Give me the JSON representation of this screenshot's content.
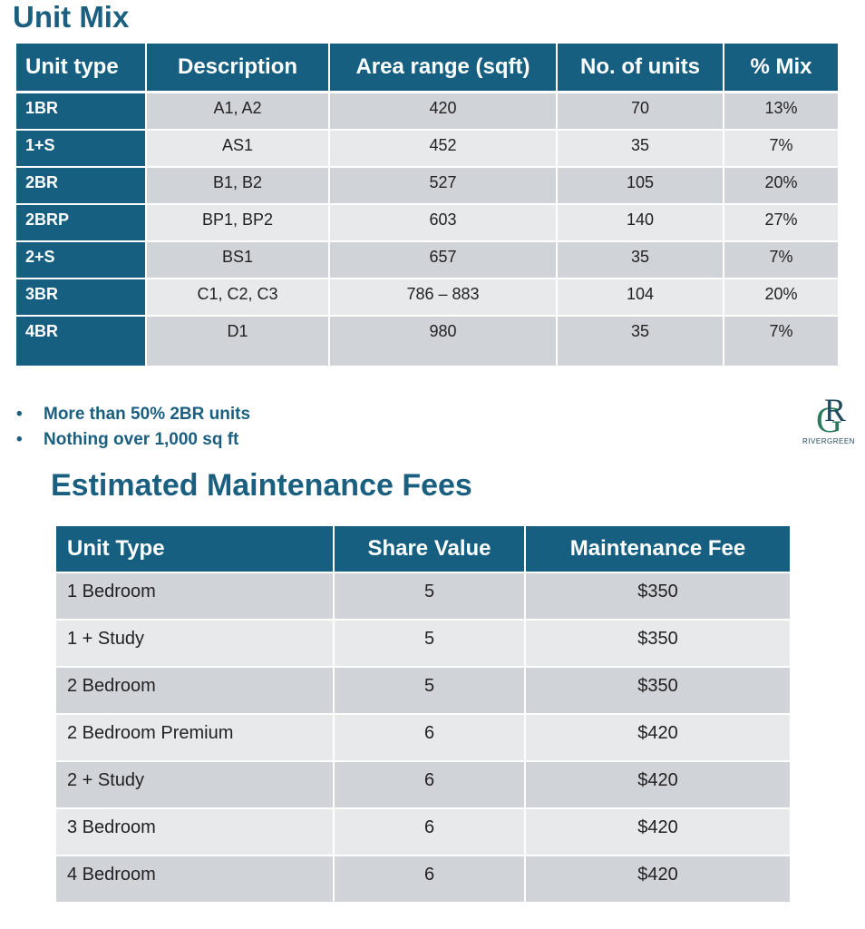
{
  "unit_mix": {
    "title": "Unit Mix",
    "headers": [
      "Unit type",
      "Description",
      "Area range (sqft)",
      "No. of units",
      "% Mix"
    ],
    "rows": [
      [
        "1BR",
        "A1, A2",
        "420",
        "70",
        "13%"
      ],
      [
        "1+S",
        "AS1",
        "452",
        "35",
        "7%"
      ],
      [
        "2BR",
        "B1, B2",
        "527",
        "105",
        "20%"
      ],
      [
        "2BRP",
        "BP1, BP2",
        "603",
        "140",
        "27%"
      ],
      [
        "2+S",
        "BS1",
        "657",
        "35",
        "7%"
      ],
      [
        "3BR",
        "C1, C2, C3",
        "786 – 883",
        "104",
        "20%"
      ],
      [
        "4BR",
        "D1",
        "980",
        "35",
        "7%"
      ]
    ]
  },
  "bullets": [
    "More than 50% 2BR units",
    "Nothing over 1,000 sq ft"
  ],
  "logo": {
    "monogram": "RG",
    "name": "RIVERGREEN"
  },
  "maintenance": {
    "title": "Estimated Maintenance Fees",
    "headers": [
      "Unit Type",
      "Share Value",
      "Maintenance Fee"
    ],
    "rows": [
      [
        "1 Bedroom",
        "5",
        "$350"
      ],
      [
        "1 + Study",
        "5",
        "$350"
      ],
      [
        "2 Bedroom",
        "5",
        "$350"
      ],
      [
        "2 Bedroom Premium",
        "6",
        "$420"
      ],
      [
        "2 + Study",
        "6",
        "$420"
      ],
      [
        "3 Bedroom",
        "6",
        "$420"
      ],
      [
        "4 Bedroom",
        "6",
        "$420"
      ]
    ]
  },
  "colors": {
    "header_bg": "#165f80",
    "title": "#1b5f80",
    "row_dark": "#d0d3d8",
    "row_light": "#e7e9eb"
  }
}
